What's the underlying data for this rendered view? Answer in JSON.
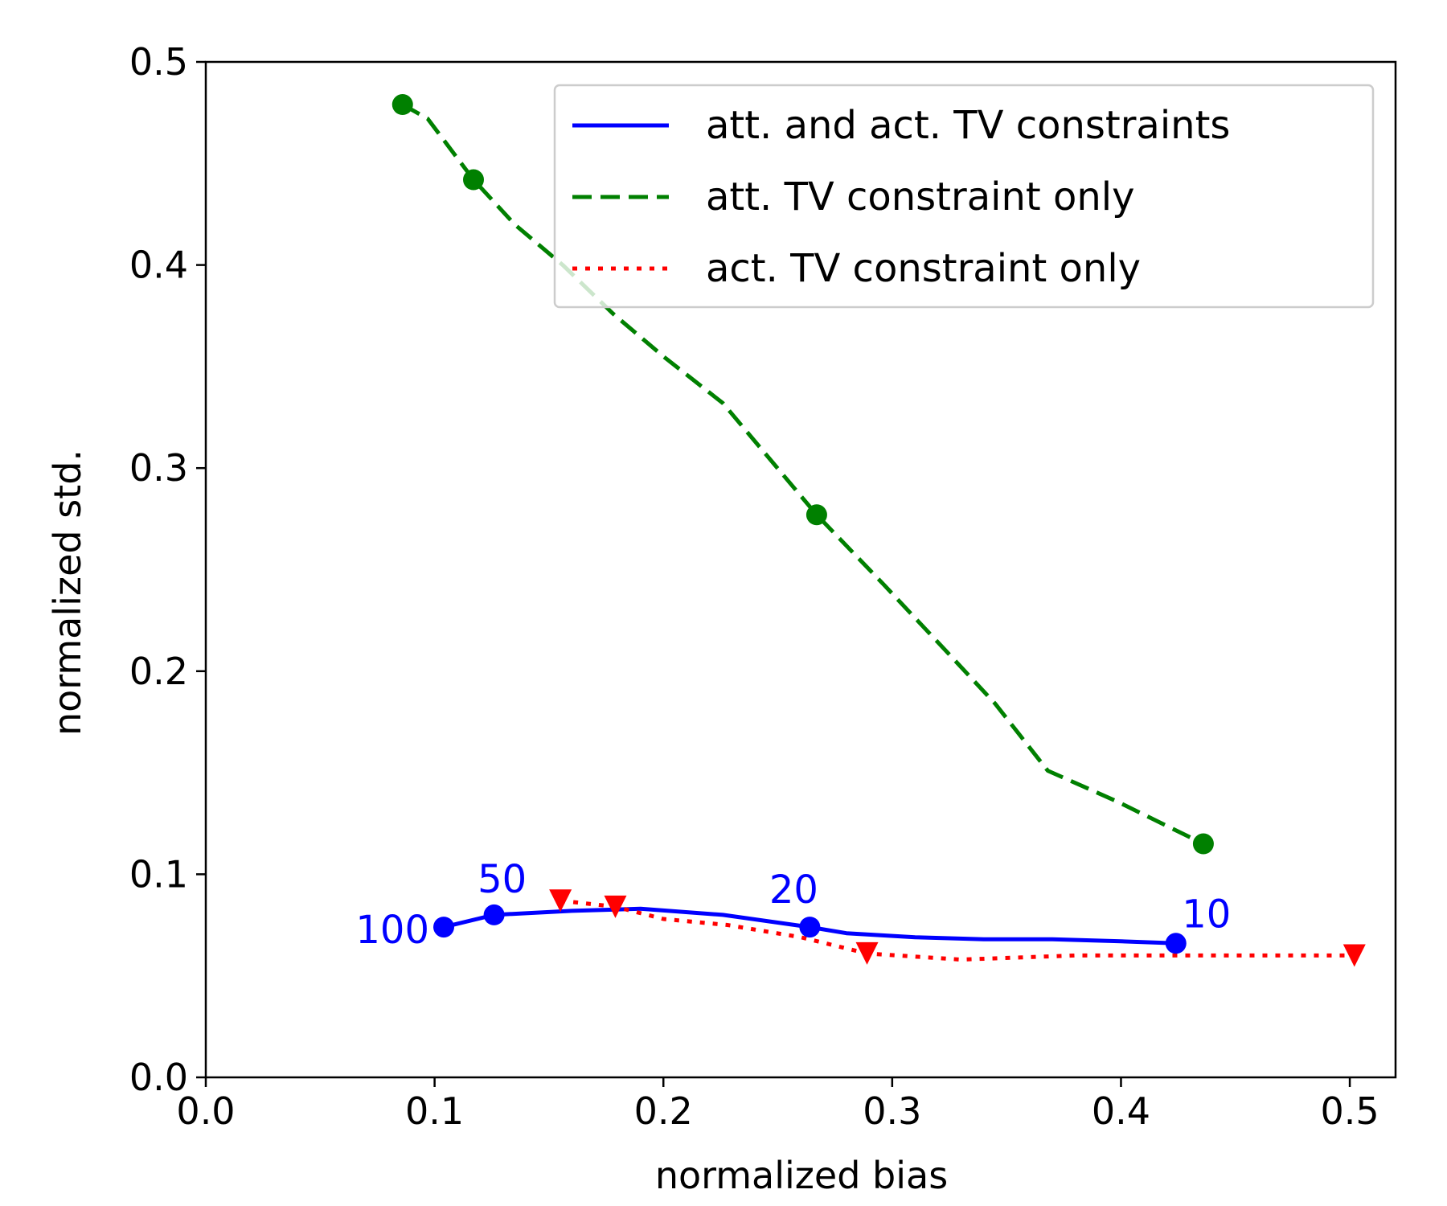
{
  "chart_data": {
    "type": "line",
    "xlabel": "normalized bias",
    "ylabel": "normalized std.",
    "xlim": [
      0,
      0.52
    ],
    "ylim": [
      0,
      0.5
    ],
    "xticks": [
      "0.0",
      "0.1",
      "0.2",
      "0.3",
      "0.4",
      "0.5"
    ],
    "yticks": [
      "0.0",
      "0.1",
      "0.2",
      "0.3",
      "0.4",
      "0.5"
    ],
    "legend_position": "top-right",
    "grid": false,
    "series": [
      {
        "name": "att. and act. TV constraints",
        "color": "#0000ff",
        "style": "solid",
        "marker": "circle",
        "x": [
          0.104,
          0.126,
          0.16,
          0.19,
          0.226,
          0.264,
          0.28,
          0.31,
          0.34,
          0.37,
          0.4,
          0.424
        ],
        "y": [
          0.074,
          0.08,
          0.082,
          0.083,
          0.08,
          0.074,
          0.071,
          0.069,
          0.068,
          0.068,
          0.067,
          0.066
        ],
        "marked_points": [
          {
            "x": 0.104,
            "y": 0.074,
            "label": "100"
          },
          {
            "x": 0.126,
            "y": 0.08,
            "label": "50"
          },
          {
            "x": 0.264,
            "y": 0.074,
            "label": "20"
          },
          {
            "x": 0.424,
            "y": 0.066,
            "label": "10"
          }
        ]
      },
      {
        "name": "att. TV constraint only",
        "color": "#008000",
        "style": "dashed",
        "marker": "circle",
        "x": [
          0.086,
          0.097,
          0.117,
          0.135,
          0.156,
          0.178,
          0.2,
          0.226,
          0.267,
          0.296,
          0.326,
          0.345,
          0.368,
          0.398,
          0.436
        ],
        "y": [
          0.479,
          0.472,
          0.442,
          0.42,
          0.4,
          0.376,
          0.355,
          0.332,
          0.277,
          0.243,
          0.207,
          0.184,
          0.151,
          0.136,
          0.115
        ],
        "marked_points": [
          {
            "x": 0.086,
            "y": 0.479
          },
          {
            "x": 0.117,
            "y": 0.442
          },
          {
            "x": 0.267,
            "y": 0.277
          },
          {
            "x": 0.436,
            "y": 0.115
          }
        ]
      },
      {
        "name": "act. TV constraint only",
        "color": "#ff0000",
        "style": "dotted",
        "marker": "triangle-down",
        "x": [
          0.155,
          0.179,
          0.2,
          0.228,
          0.26,
          0.289,
          0.33,
          0.38,
          0.43,
          0.502
        ],
        "y": [
          0.087,
          0.084,
          0.078,
          0.075,
          0.069,
          0.061,
          0.058,
          0.06,
          0.06,
          0.06
        ],
        "marked_points": [
          {
            "x": 0.155,
            "y": 0.087
          },
          {
            "x": 0.179,
            "y": 0.084
          },
          {
            "x": 0.289,
            "y": 0.061
          },
          {
            "x": 0.502,
            "y": 0.06
          }
        ]
      }
    ]
  }
}
